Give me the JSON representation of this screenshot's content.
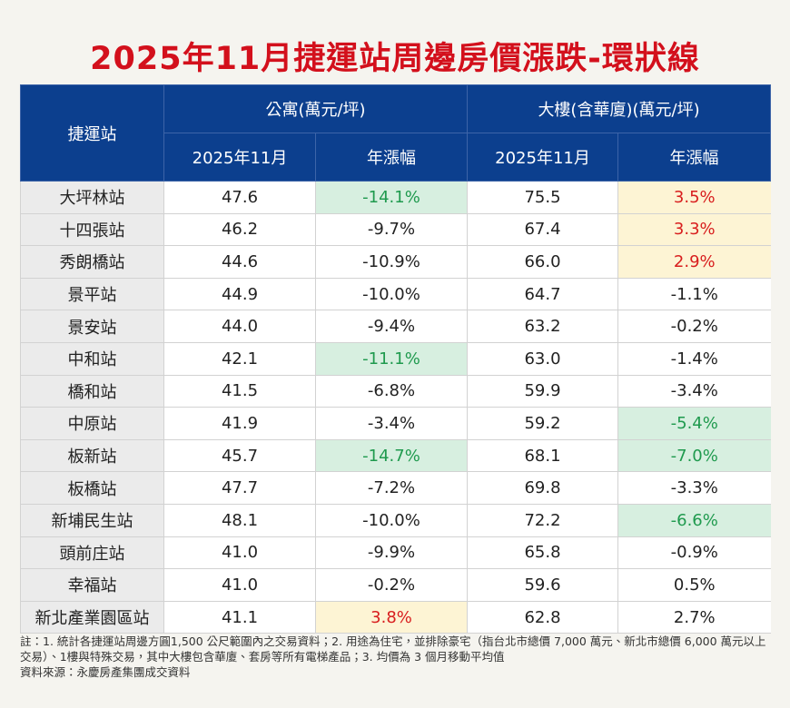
{
  "title": "2025年11月捷運站周邊房價漲跌-環狀線",
  "table": {
    "header": {
      "station": "捷運站",
      "group_apartment": "公寓(萬元/坪)",
      "group_building": "大樓(含華廈)(萬元/坪)",
      "sub": [
        "2025年11月",
        "年漲幅",
        "2025年11月",
        "年漲幅"
      ]
    },
    "rows": [
      [
        "大坪林站",
        "47.6",
        "-14.1%",
        "75.5",
        "3.5%"
      ],
      [
        "十四張站",
        "46.2",
        "-9.7%",
        "67.4",
        "3.3%"
      ],
      [
        "秀朗橋站",
        "44.6",
        "-10.9%",
        "66.0",
        "2.9%"
      ],
      [
        "景平站",
        "44.9",
        "-10.0%",
        "64.7",
        "-1.1%"
      ],
      [
        "景安站",
        "44.0",
        "-9.4%",
        "63.2",
        "-0.2%"
      ],
      [
        "中和站",
        "42.1",
        "-11.1%",
        "63.0",
        "-1.4%"
      ],
      [
        "橋和站",
        "41.5",
        "-6.8%",
        "59.9",
        "-3.4%"
      ],
      [
        "中原站",
        "41.9",
        "-3.4%",
        "59.2",
        "-5.4%"
      ],
      [
        "板新站",
        "45.7",
        "-14.7%",
        "68.1",
        "-7.0%"
      ],
      [
        "板橋站",
        "47.7",
        "-7.2%",
        "69.8",
        "-3.3%"
      ],
      [
        "新埔民生站",
        "48.1",
        "-10.0%",
        "72.2",
        "-6.6%"
      ],
      [
        "頭前庄站",
        "41.0",
        "-9.9%",
        "65.8",
        "-0.9%"
      ],
      [
        "幸福站",
        "41.0",
        "-0.2%",
        "59.6",
        "0.5%"
      ],
      [
        "新北產業園區站",
        "41.1",
        "3.8%",
        "62.8",
        "2.7%"
      ]
    ],
    "highlights": [
      {
        "row": 0,
        "col": 2,
        "color": "green"
      },
      {
        "row": 0,
        "col": 4,
        "color": "yellow"
      },
      {
        "row": 1,
        "col": 4,
        "color": "yellow"
      },
      {
        "row": 2,
        "col": 4,
        "color": "yellow"
      },
      {
        "row": 5,
        "col": 2,
        "color": "green"
      },
      {
        "row": 7,
        "col": 4,
        "color": "green"
      },
      {
        "row": 8,
        "col": 2,
        "color": "green"
      },
      {
        "row": 8,
        "col": 4,
        "color": "green"
      },
      {
        "row": 10,
        "col": 4,
        "color": "green"
      },
      {
        "row": 13,
        "col": 2,
        "color": "yellow"
      }
    ]
  },
  "notes": "註：1. 統計各捷運站周邊方圓1,500 公尺範圍內之交易資料；2. 用途為住宅，並排除豪宅（指台北市總價 7,000 萬元、新北市總價 6,000 萬元以上交易）、1樓與特殊交易，其中大樓包含華廈、套房等所有電梯產品；3. 均價為 3 個月移動平均值",
  "source": "資料來源：永慶房產集團成交資料"
}
